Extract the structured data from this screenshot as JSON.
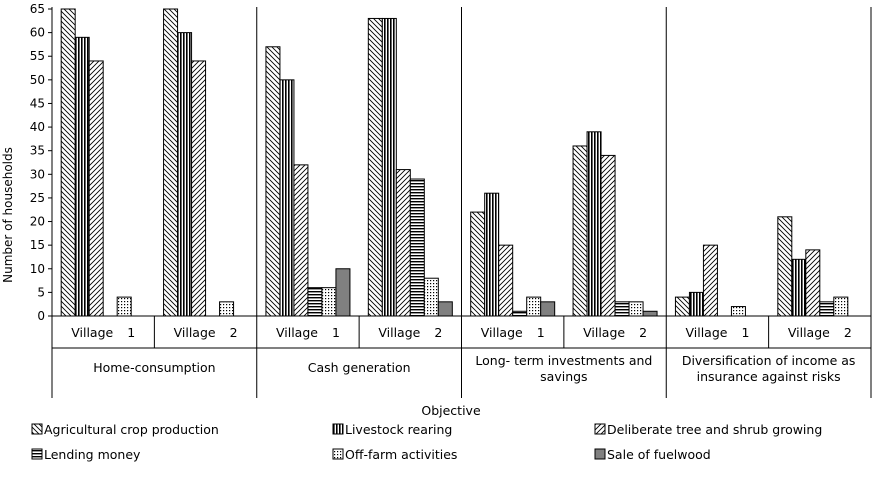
{
  "chart_data": {
    "type": "bar",
    "ylabel": "Number of households",
    "xlabel": "Objective",
    "ylim": [
      0,
      65
    ],
    "y_ticks": [
      0,
      5,
      10,
      15,
      20,
      25,
      30,
      35,
      40,
      45,
      50,
      55,
      60,
      65
    ],
    "grid": "vertical separators between groups",
    "legend_position": "bottom",
    "categories": [
      "Village 1",
      "Village 2",
      "Village 1",
      "Village 2",
      "Village 1",
      "Village 2",
      "Village 1",
      "Village 2"
    ],
    "category_labels": [
      [
        "Village",
        "1"
      ],
      [
        "Village",
        "2"
      ],
      [
        "Village",
        "1"
      ],
      [
        "Village",
        "2"
      ],
      [
        "Village",
        "1"
      ],
      [
        "Village",
        "2"
      ],
      [
        "Village",
        "1"
      ],
      [
        "Village",
        "2"
      ]
    ],
    "groups": [
      {
        "lines": [
          "Home-consumption"
        ]
      },
      {
        "lines": [
          "Cash generation"
        ]
      },
      {
        "lines": [
          "Long- term investments and",
          "savings"
        ]
      },
      {
        "lines": [
          "Diversification of income as",
          "insurance against risks"
        ]
      }
    ],
    "series": [
      {
        "name": "Agricultural crop production",
        "pattern": "diag-down",
        "values": [
          65,
          65,
          57,
          63,
          22,
          36,
          4,
          21
        ]
      },
      {
        "name": "Livestock rearing",
        "pattern": "vertical",
        "values": [
          59,
          60,
          50,
          63,
          26,
          39,
          5,
          12
        ]
      },
      {
        "name": "Deliberate tree and shrub growing",
        "pattern": "diag-up",
        "values": [
          54,
          54,
          32,
          31,
          15,
          34,
          15,
          14
        ]
      },
      {
        "name": "Lending money",
        "pattern": "horizontal",
        "values": [
          0,
          0,
          6,
          29,
          1,
          3,
          0,
          3
        ]
      },
      {
        "name": "Off-farm activities",
        "pattern": "dots",
        "values": [
          4,
          3,
          6,
          8,
          4,
          3,
          2,
          4
        ]
      },
      {
        "name": "Sale of fuelwood",
        "pattern": "solid",
        "values": [
          0,
          0,
          10,
          3,
          3,
          1,
          0,
          0
        ]
      }
    ],
    "colors": {
      "fill": "#808080",
      "stroke": "#000000",
      "background": "#ffffff"
    }
  }
}
